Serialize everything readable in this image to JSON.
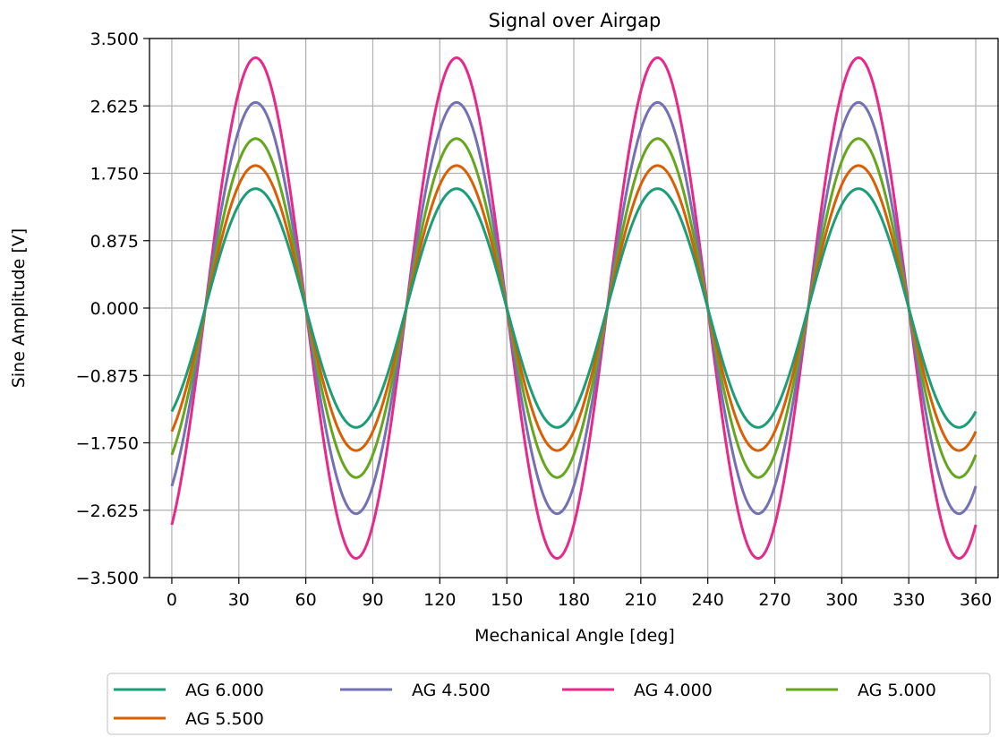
{
  "chart_data": {
    "type": "line",
    "title": "Signal over Airgap",
    "xlabel": "Mechanical Angle [deg]",
    "ylabel": "Sine Amplitude [V]",
    "xlim": [
      -10,
      370
    ],
    "ylim": [
      -3.5,
      3.5
    ],
    "xticks": [
      0,
      30,
      60,
      90,
      120,
      150,
      180,
      210,
      240,
      270,
      300,
      330,
      360
    ],
    "yticks": [
      3.5,
      2.625,
      1.75,
      0.875,
      0.0,
      -0.875,
      -1.75,
      -2.625,
      -3.5
    ],
    "xtick_labels": [
      "0",
      "30",
      "60",
      "90",
      "120",
      "150",
      "180",
      "210",
      "240",
      "270",
      "300",
      "330",
      "360"
    ],
    "ytick_labels": [
      "3.500",
      "2.625",
      "1.750",
      "0.875",
      "0.000",
      "−0.875",
      "−1.750",
      "−2.625",
      "−3.500"
    ],
    "grid": true,
    "legend_position": "bottom-center",
    "waveform": {
      "form": "sine",
      "period_deg": 90,
      "zero_crossing_deg": 15,
      "x_start": 0,
      "x_end": 360
    },
    "series": [
      {
        "name": "AG 6.000",
        "amplitude": 1.55,
        "color": "#1b9e77"
      },
      {
        "name": "AG 4.500",
        "amplitude": 2.67,
        "color": "#7570b3"
      },
      {
        "name": "AG 4.000",
        "amplitude": 3.25,
        "color": "#e7298a"
      },
      {
        "name": "AG 5.000",
        "amplitude": 2.2,
        "color": "#66a61e"
      },
      {
        "name": "AG 5.500",
        "amplitude": 1.85,
        "color": "#d95f02"
      }
    ],
    "draw_order": [
      2,
      1,
      3,
      4,
      0
    ]
  }
}
